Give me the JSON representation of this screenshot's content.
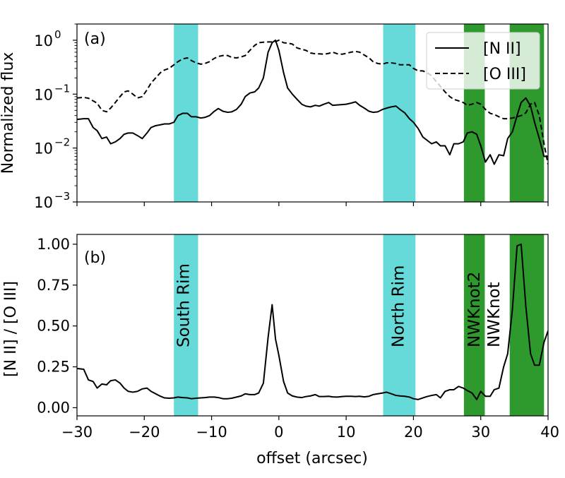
{
  "chart_data": [
    {
      "type": "line",
      "panel_tag": "(a)",
      "xlabel": "",
      "ylabel": "Normalized flux",
      "yscale": "log",
      "xlim": [
        -30,
        40
      ],
      "ylim": [
        0.001,
        2.0
      ],
      "yticks": [
        {
          "value": 0.001,
          "base": "10",
          "exp": "−3"
        },
        {
          "value": 0.01,
          "base": "10",
          "exp": "−2"
        },
        {
          "value": 0.1,
          "base": "10",
          "exp": "−1"
        },
        {
          "value": 1,
          "base": "10",
          "exp": "0"
        }
      ],
      "legend": {
        "position": "top-right"
      },
      "regions": [
        {
          "x0": -15.6,
          "x1": -12.0,
          "color": "#66d9d9"
        },
        {
          "x0": 15.5,
          "x1": 20.3,
          "color": "#66d9d9"
        },
        {
          "x0": 27.5,
          "x1": 30.6,
          "color": "#2e9a2e"
        },
        {
          "x0": 34.3,
          "x1": 39.4,
          "color": "#2e9a2e"
        }
      ],
      "series": [
        {
          "name": "[N II]",
          "style": "solid",
          "x": [
            -30,
            -29,
            -28.3,
            -27.6,
            -27,
            -26.3,
            -25.6,
            -25,
            -24.3,
            -23.6,
            -23,
            -22.4,
            -21.7,
            -21,
            -20.3,
            -19.6,
            -19,
            -18.3,
            -17.6,
            -17,
            -16.3,
            -15.6,
            -15,
            -14.3,
            -13.6,
            -13,
            -12.3,
            -11.6,
            -11,
            -10.3,
            -9.6,
            -9,
            -8.3,
            -7.6,
            -7,
            -6.3,
            -5.6,
            -5,
            -4.3,
            -3.6,
            -3,
            -2.3,
            -1.6,
            -1,
            -0.5,
            0,
            0.7,
            1.3,
            2,
            2.7,
            3.4,
            4,
            4.7,
            5.4,
            6,
            6.7,
            7.4,
            8,
            8.7,
            9.4,
            10,
            10.7,
            11.4,
            12,
            12.7,
            13.4,
            14,
            14.7,
            15.4,
            16,
            16.7,
            17.4,
            18,
            18.7,
            19.4,
            20,
            20.7,
            21.4,
            22,
            22.7,
            23.4,
            24,
            24.7,
            25.4,
            26,
            26.7,
            27.4,
            28,
            28.7,
            29.4,
            30,
            30.7,
            31.4,
            32,
            32.7,
            33.4,
            34,
            34.7,
            35.4,
            36,
            36.7,
            37.4,
            38,
            38.7,
            39.4,
            40
          ],
          "y": [
            0.034,
            0.035,
            0.035,
            0.024,
            0.021,
            0.015,
            0.016,
            0.012,
            0.013,
            0.015,
            0.018,
            0.019,
            0.019,
            0.017,
            0.015,
            0.019,
            0.024,
            0.026,
            0.027,
            0.028,
            0.028,
            0.03,
            0.04,
            0.044,
            0.044,
            0.038,
            0.038,
            0.036,
            0.037,
            0.04,
            0.048,
            0.054,
            0.048,
            0.046,
            0.047,
            0.052,
            0.065,
            0.09,
            0.105,
            0.11,
            0.13,
            0.2,
            0.6,
            0.9,
            1.0,
            0.65,
            0.25,
            0.13,
            0.1,
            0.08,
            0.065,
            0.06,
            0.058,
            0.062,
            0.06,
            0.065,
            0.07,
            0.062,
            0.063,
            0.064,
            0.065,
            0.068,
            0.072,
            0.062,
            0.055,
            0.048,
            0.046,
            0.047,
            0.052,
            0.055,
            0.058,
            0.06,
            0.052,
            0.045,
            0.035,
            0.03,
            0.023,
            0.016,
            0.014,
            0.012,
            0.013,
            0.011,
            0.011,
            0.0075,
            0.012,
            0.012,
            0.013,
            0.019,
            0.02,
            0.018,
            0.011,
            0.0055,
            0.0075,
            0.005,
            0.0075,
            0.0072,
            0.015,
            0.02,
            0.04,
            0.07,
            0.085,
            0.06,
            0.03,
            0.015,
            0.007,
            0.007
          ]
        },
        {
          "name": "[O III]",
          "style": "dashed",
          "x": [
            -30,
            -29,
            -28.3,
            -27.6,
            -27,
            -26.3,
            -25.6,
            -25,
            -24.3,
            -23.6,
            -23,
            -22.4,
            -21.7,
            -21,
            -20.3,
            -19.6,
            -19,
            -18.3,
            -17.6,
            -17,
            -16.3,
            -15.6,
            -15,
            -14.3,
            -13.6,
            -13,
            -12.3,
            -11.6,
            -11,
            -10.3,
            -9.6,
            -9,
            -8.3,
            -7.6,
            -7,
            -6.3,
            -5.6,
            -5,
            -4.3,
            -3.6,
            -3,
            -2.3,
            -1.6,
            -1,
            -0.5,
            0,
            0.7,
            1.3,
            2,
            2.7,
            3.4,
            4,
            4.7,
            5.4,
            6,
            6.7,
            7.4,
            8,
            8.7,
            9.4,
            10,
            10.7,
            11.4,
            12,
            12.7,
            13.4,
            14,
            14.7,
            15.4,
            16,
            16.7,
            17.4,
            18,
            18.7,
            19.4,
            20,
            20.7,
            21.4,
            22,
            22.7,
            23.4,
            24,
            24.7,
            25.4,
            26,
            26.7,
            27.4,
            28,
            28.7,
            29.4,
            30,
            30.7,
            31.4,
            32,
            32.7,
            33.4,
            34,
            34.7,
            35.4,
            36,
            36.7,
            37.4,
            38,
            38.7,
            39.4,
            40
          ],
          "y": [
            0.085,
            0.087,
            0.084,
            0.075,
            0.068,
            0.05,
            0.047,
            0.055,
            0.07,
            0.09,
            0.11,
            0.115,
            0.1,
            0.085,
            0.09,
            0.12,
            0.16,
            0.2,
            0.25,
            0.28,
            0.3,
            0.35,
            0.4,
            0.45,
            0.47,
            0.42,
            0.38,
            0.36,
            0.37,
            0.4,
            0.46,
            0.5,
            0.52,
            0.52,
            0.48,
            0.47,
            0.49,
            0.52,
            0.65,
            0.8,
            0.9,
            0.92,
            0.93,
            0.93,
            0.94,
            1.0,
            0.9,
            0.88,
            0.85,
            0.72,
            0.68,
            0.65,
            0.58,
            0.56,
            0.56,
            0.55,
            0.57,
            0.6,
            0.56,
            0.55,
            0.57,
            0.6,
            0.62,
            0.6,
            0.53,
            0.47,
            0.4,
            0.37,
            0.36,
            0.38,
            0.38,
            0.37,
            0.35,
            0.35,
            0.35,
            0.3,
            0.27,
            0.27,
            0.25,
            0.22,
            0.17,
            0.14,
            0.11,
            0.09,
            0.08,
            0.075,
            0.07,
            0.062,
            0.065,
            0.07,
            0.065,
            0.052,
            0.044,
            0.042,
            0.038,
            0.035,
            0.035,
            0.036,
            0.038,
            0.04,
            0.045,
            0.065,
            0.07,
            0.04,
            0.012,
            0.005
          ]
        }
      ]
    },
    {
      "type": "line",
      "panel_tag": "(b)",
      "xlabel": "offset (arcsec)",
      "ylabel": "[N II] / [O III]",
      "xlim": [
        -30,
        40
      ],
      "ylim": [
        -0.05,
        1.06
      ],
      "xticks": [
        -30,
        -20,
        -10,
        0,
        10,
        20,
        30,
        40
      ],
      "xtick_labels": [
        "−30",
        "−20",
        "−10",
        "0",
        "10",
        "20",
        "30",
        "40"
      ],
      "yticks": [
        0.0,
        0.25,
        0.5,
        0.75,
        1.0
      ],
      "ytick_labels": [
        "0.00",
        "0.25",
        "0.50",
        "0.75",
        "1.00"
      ],
      "regions": [
        {
          "x0": -15.6,
          "x1": -12.0,
          "color": "#66d9d9",
          "label": "South Rim"
        },
        {
          "x0": 15.5,
          "x1": 20.3,
          "color": "#66d9d9",
          "label": "North Rim"
        },
        {
          "x0": 27.5,
          "x1": 30.6,
          "color": "#2e9a2e",
          "label": "NWKnot2"
        },
        {
          "x0": 34.3,
          "x1": 39.4,
          "color": "#2e9a2e",
          "label": "NWKnot"
        }
      ],
      "series": [
        {
          "style": "solid",
          "x": [
            -30,
            -29,
            -28.3,
            -27.6,
            -27,
            -26.3,
            -25.6,
            -25,
            -24.3,
            -23.6,
            -23,
            -22.4,
            -21.7,
            -21,
            -20.3,
            -19.6,
            -19,
            -18.3,
            -17.6,
            -17,
            -16.3,
            -15.6,
            -15,
            -14.3,
            -13.6,
            -13,
            -12.3,
            -11.6,
            -11,
            -10.3,
            -9.6,
            -9,
            -8.3,
            -7.6,
            -7,
            -6.3,
            -5.6,
            -5,
            -4.3,
            -3.6,
            -3,
            -2.3,
            -1.6,
            -1,
            -0.5,
            0,
            0.7,
            1.3,
            2,
            2.7,
            3.4,
            4,
            4.7,
            5.4,
            6,
            6.7,
            7.4,
            8,
            8.7,
            9.4,
            10,
            10.7,
            11.4,
            12,
            12.7,
            13.4,
            14,
            14.7,
            15.4,
            16,
            16.7,
            17.4,
            18,
            18.7,
            19.4,
            20,
            20.7,
            21.4,
            22,
            22.7,
            23.4,
            24,
            24.7,
            25.4,
            26,
            26.7,
            27.4,
            28,
            28.7,
            29.4,
            30,
            30.7,
            31.4,
            32,
            32.7,
            33.4,
            34,
            34.7,
            35.4,
            36,
            36.7,
            37.4,
            38,
            38.7,
            39.4,
            40
          ],
          "y": [
            0.24,
            0.235,
            0.17,
            0.16,
            0.12,
            0.145,
            0.14,
            0.165,
            0.17,
            0.15,
            0.12,
            0.1,
            0.095,
            0.1,
            0.115,
            0.12,
            0.1,
            0.085,
            0.07,
            0.06,
            0.058,
            0.06,
            0.065,
            0.062,
            0.06,
            0.055,
            0.058,
            0.06,
            0.062,
            0.065,
            0.065,
            0.062,
            0.055,
            0.055,
            0.058,
            0.065,
            0.072,
            0.085,
            0.08,
            0.08,
            0.09,
            0.15,
            0.43,
            0.63,
            0.42,
            0.32,
            0.16,
            0.09,
            0.072,
            0.065,
            0.062,
            0.068,
            0.072,
            0.08,
            0.068,
            0.068,
            0.07,
            0.066,
            0.065,
            0.068,
            0.07,
            0.07,
            0.068,
            0.07,
            0.066,
            0.07,
            0.08,
            0.085,
            0.09,
            0.095,
            0.085,
            0.075,
            0.072,
            0.07,
            0.065,
            0.055,
            0.05,
            0.06,
            0.068,
            0.075,
            0.08,
            0.06,
            0.1,
            0.11,
            0.11,
            0.13,
            0.12,
            0.105,
            0.09,
            0.05,
            0.1,
            0.07,
            0.07,
            0.11,
            0.12,
            0.25,
            0.33,
            0.6,
            0.99,
            1.0,
            0.62,
            0.33,
            0.26,
            0.26,
            0.4,
            0.47
          ]
        }
      ]
    }
  ]
}
